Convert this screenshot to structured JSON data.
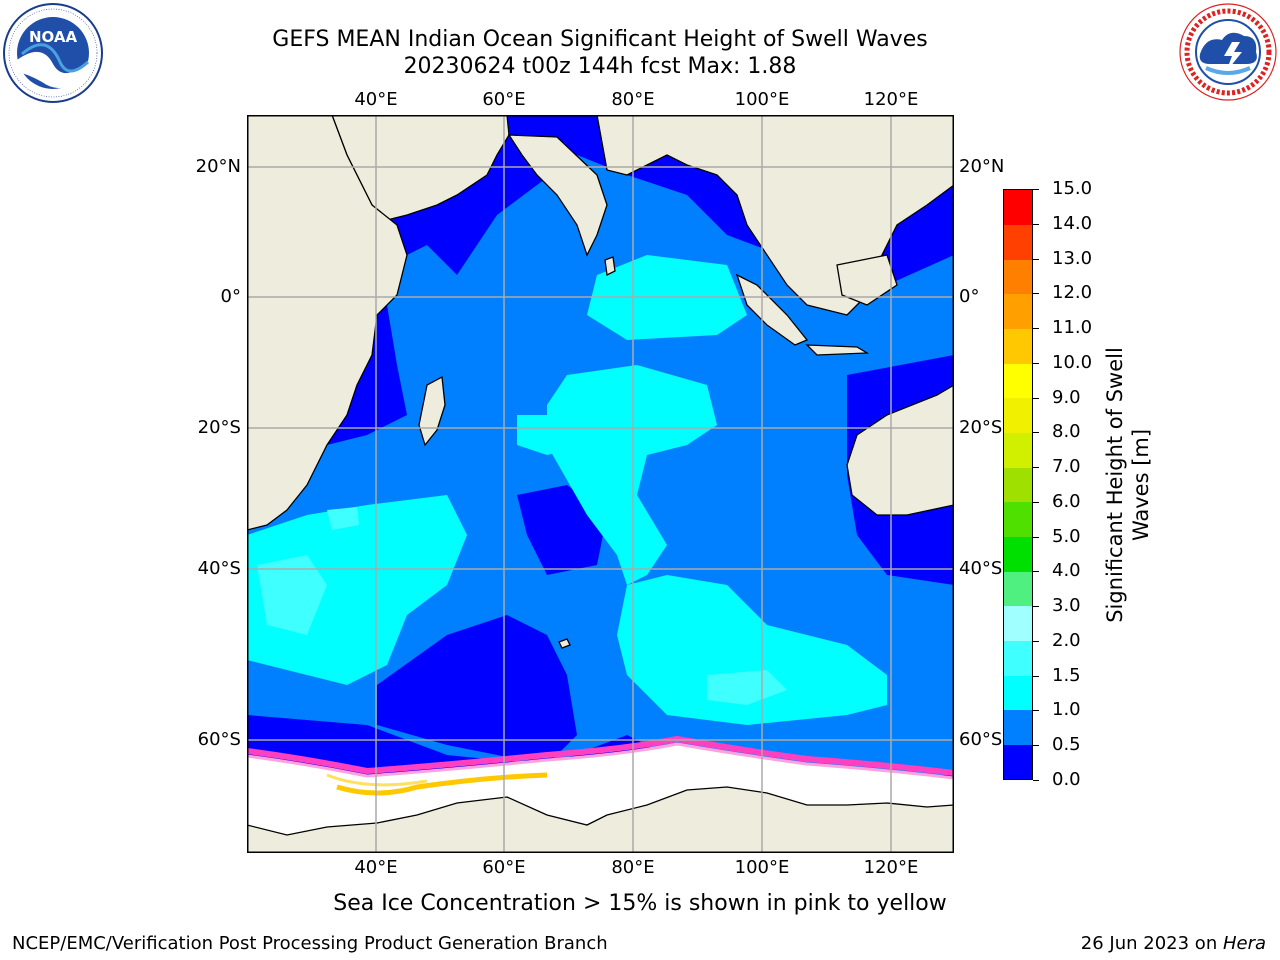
{
  "title": {
    "line1": "GEFS MEAN Indian Ocean Significant Height of Swell Waves",
    "line2": "20230624 t00z 144h fcst   Max: 1.88"
  },
  "logos": {
    "noaa": {
      "text": "NOAA",
      "ring_text": "NATIONAL OCEANIC AND ATMOSPHERIC ADMINISTRATION · U.S. DEPARTMENT OF COMMERCE"
    },
    "nws": {
      "ring_text": "NATIONAL WEATHER SERVICE"
    }
  },
  "map": {
    "lon_ticks": [
      "40°E",
      "60°E",
      "80°E",
      "100°E",
      "120°E"
    ],
    "lat_ticks": [
      "20°N",
      "0°",
      "20°S",
      "40°S",
      "60°S"
    ],
    "lon_range": [
      20,
      130
    ],
    "lat_range": [
      -75,
      28
    ],
    "colors": {
      "land": "#eeecdc",
      "coastline": "#000000",
      "grid": "#aaaaaa",
      "ice": "#ffffff",
      "ice_edge": [
        "#ff40c0",
        "#ffa0e0",
        "#ffc800",
        "#ffe060"
      ]
    }
  },
  "colorbar": {
    "title_line1": "Significant Height of Swell",
    "title_line2": "Waves [m]",
    "tick_labels": [
      "0.0",
      "0.5",
      "1.0",
      "1.5",
      "2.0",
      "3.0",
      "4.0",
      "5.0",
      "6.0",
      "7.0",
      "8.0",
      "9.0",
      "10.0",
      "11.0",
      "12.0",
      "13.0",
      "14.0",
      "15.0"
    ],
    "colors": [
      "#0000ff",
      "#0080ff",
      "#00ffff",
      "#40ffff",
      "#a0ffff",
      "#50f080",
      "#00e000",
      "#50e000",
      "#a0e000",
      "#d0f000",
      "#f0f000",
      "#ffff00",
      "#ffc800",
      "#ffa000",
      "#ff8000",
      "#ff4000",
      "#ff0000"
    ]
  },
  "note": "Sea Ice Concentration > 15% is shown in pink to yellow",
  "footer": {
    "left": "NCEP/EMC/Verification Post Processing Product Generation Branch",
    "right_date": "26 Jun 2023 on ",
    "right_host": "Hera"
  }
}
